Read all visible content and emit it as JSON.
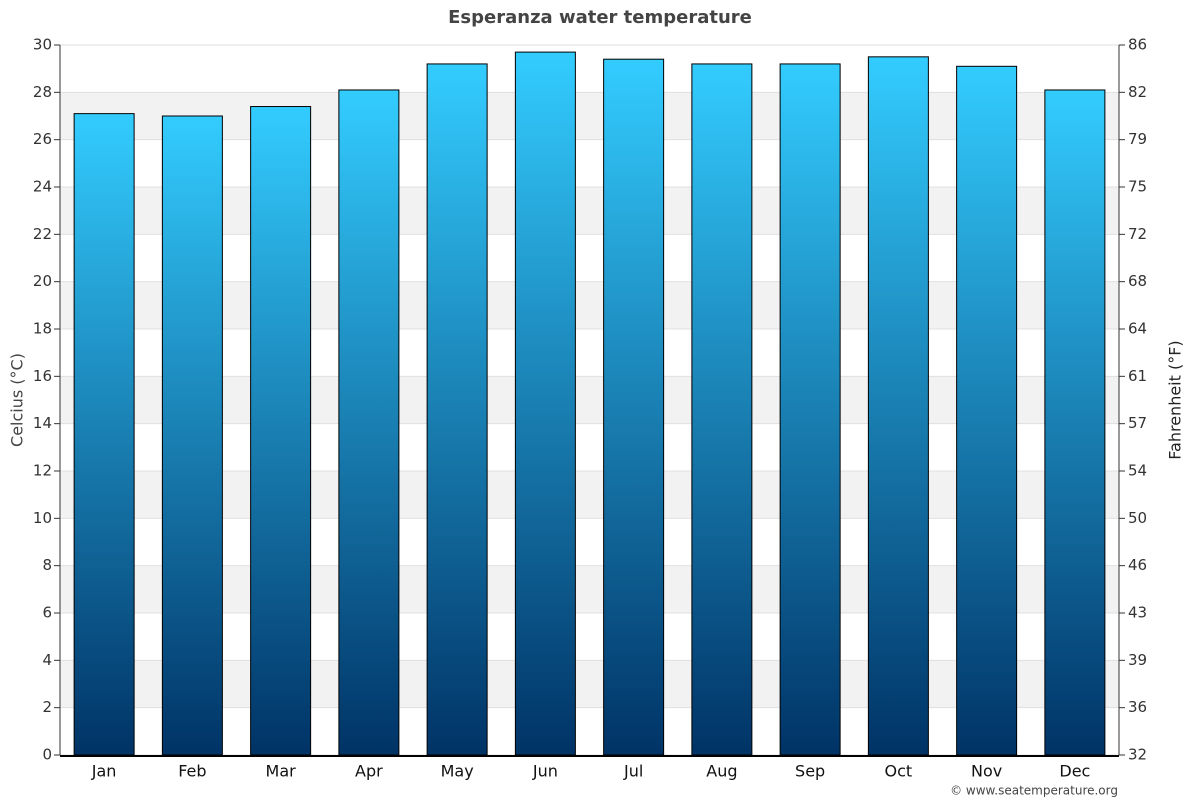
{
  "chart_data": {
    "type": "bar",
    "title": "Esperanza water temperature",
    "y_label": "Celcius (°C)",
    "y2_label": "Fahrenheit (°F)",
    "credit": "© www.seatemperature.org",
    "categories": [
      "Jan",
      "Feb",
      "Mar",
      "Apr",
      "May",
      "Jun",
      "Jul",
      "Aug",
      "Sep",
      "Oct",
      "Nov",
      "Dec"
    ],
    "values": [
      27.1,
      27.0,
      27.4,
      28.1,
      29.2,
      29.7,
      29.4,
      29.2,
      29.2,
      29.5,
      29.1,
      28.1
    ],
    "color": [
      "#33ccff",
      "#003366"
    ],
    "ylim": [
      0,
      30
    ],
    "yticks": [
      0,
      2,
      4,
      6,
      8,
      10,
      12,
      14,
      16,
      18,
      20,
      22,
      24,
      26,
      28,
      30
    ],
    "y2lim": [
      32,
      86
    ],
    "y2ticks": [
      32,
      {
        "value": 35.6,
        "label": "36"
      },
      {
        "value": 39.2,
        "label": "39"
      },
      {
        "value": 42.8,
        "label": "43"
      },
      {
        "value": 46.4,
        "label": "46"
      },
      50,
      {
        "value": 53.6,
        "label": "54"
      },
      {
        "value": 57.2,
        "label": "57"
      },
      {
        "value": 60.8,
        "label": "61"
      },
      {
        "value": 64.4,
        "label": "64"
      },
      68,
      {
        "value": 71.6,
        "label": "72"
      },
      {
        "value": 75.2,
        "label": "75"
      },
      {
        "value": 78.8,
        "label": "79"
      },
      {
        "value": 82.4,
        "label": "82"
      },
      86
    ],
    "grid": true
  }
}
